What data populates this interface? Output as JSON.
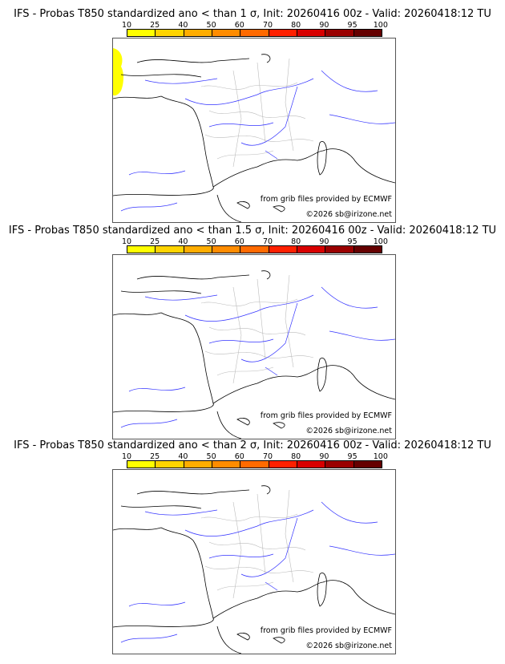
{
  "panels": [
    {
      "title": "IFS - Probas T850  standardized ano < than 1 σ, Init: 20260416 00z - Valid: 20260418:12 TU",
      "has_yellow_area": true
    },
    {
      "title": "IFS - Probas T850  standardized ano < than 1.5 σ, Init: 20260416 00z - Valid: 20260418:12 TU",
      "has_yellow_area": false
    },
    {
      "title": "IFS - Probas T850  standardized ano < than 2 σ, Init: 20260416 00z - Valid: 20260418:12 TU",
      "has_yellow_area": false
    }
  ],
  "colorbar": {
    "labels": [
      "10",
      "25",
      "40",
      "50",
      "60",
      "70",
      "80",
      "90",
      "95",
      "100"
    ],
    "colors": [
      "#ffff00",
      "#ffd400",
      "#ffad00",
      "#ff8c00",
      "#ff6a00",
      "#ff2000",
      "#d80000",
      "#9a0000",
      "#650000"
    ]
  },
  "credits": {
    "source": "from grib files provided by ECMWF",
    "copyright": "©2026 sb@irizone.net"
  }
}
